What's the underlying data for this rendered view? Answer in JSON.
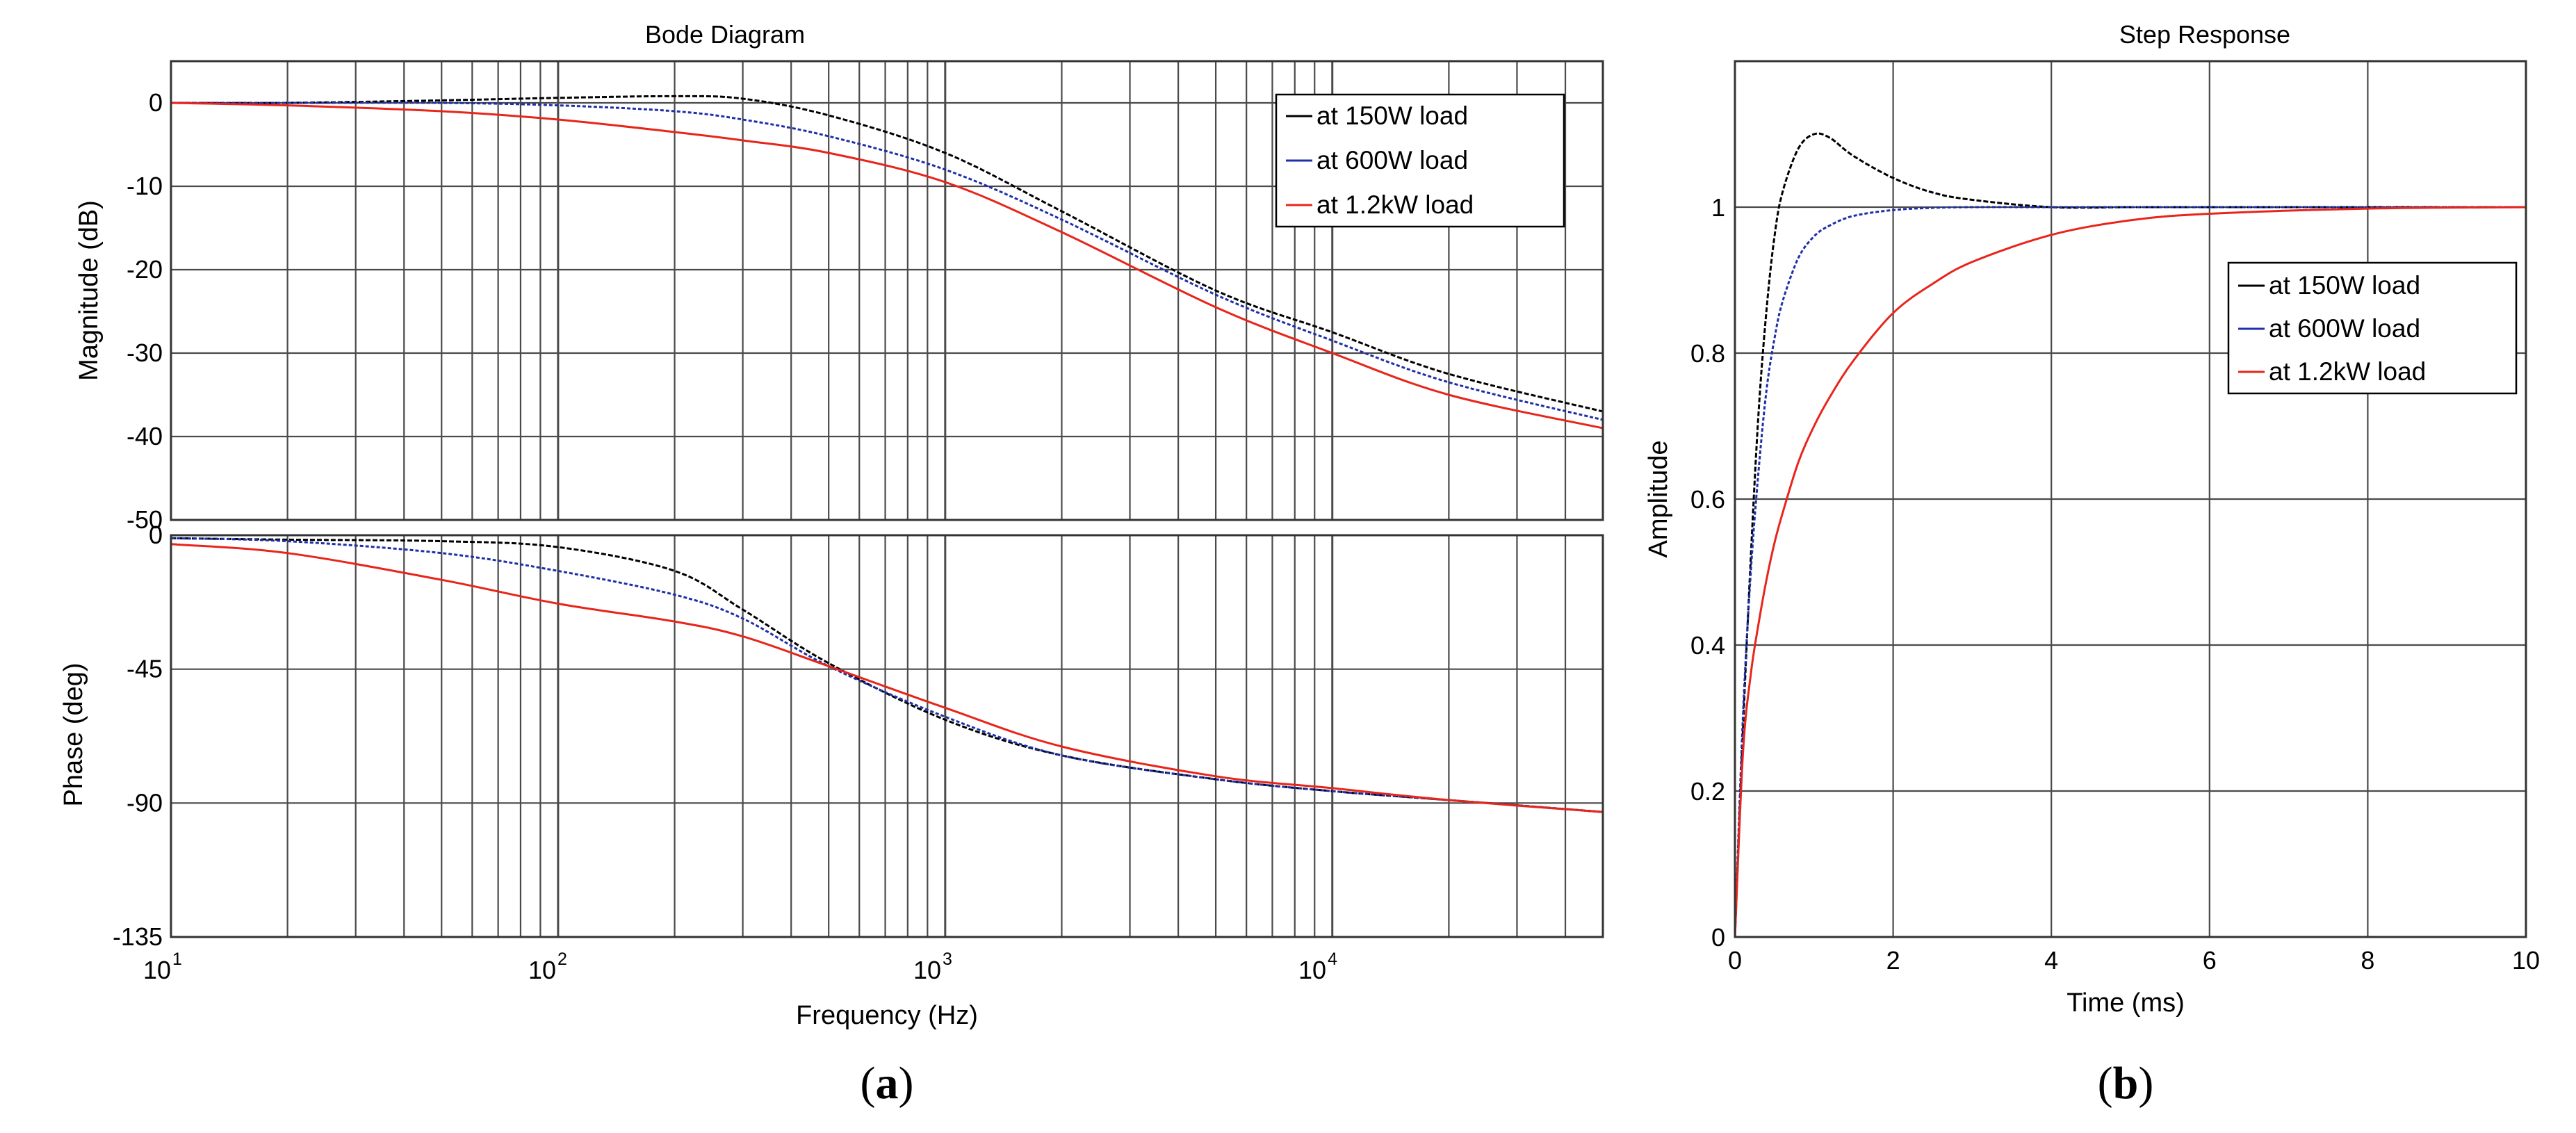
{
  "panels": [
    {
      "caption_open": "(",
      "caption_letter": "a",
      "caption_close": ")"
    },
    {
      "caption_open": "(",
      "caption_letter": "b",
      "caption_close": ")"
    }
  ],
  "chart_data": [
    {
      "type": "line",
      "title": "Bode Diagram",
      "subplot": "magnitude",
      "xscale": "log",
      "xlabel": "Frequency  (Hz)",
      "ylabel": "Magnitude (dB)",
      "xlim": [
        10,
        50000
      ],
      "ylim": [
        -50,
        5
      ],
      "grid": true,
      "legend_position": "top-right",
      "x_ticks": [
        {
          "base": "10",
          "exp": "1"
        },
        {
          "base": "10",
          "exp": "2"
        },
        {
          "base": "10",
          "exp": "3"
        },
        {
          "base": "10",
          "exp": "4"
        }
      ],
      "y_ticks": [
        "0",
        "-10",
        "-20",
        "-30",
        "-40",
        "-50"
      ],
      "y_tick_values": [
        0,
        -10,
        -20,
        -30,
        -40,
        -50
      ],
      "x": [
        10,
        20,
        50,
        100,
        200,
        300,
        500,
        1000,
        2000,
        5000,
        10000,
        20000,
        50000
      ],
      "series": [
        {
          "name": "at 150W load",
          "color": "#000000",
          "values": [
            0,
            0,
            0.3,
            0.6,
            0.8,
            0.5,
            -1.5,
            -6,
            -13,
            -22.5,
            -27.5,
            -32.5,
            -37
          ]
        },
        {
          "name": "at 600W load",
          "color": "#1f2fa8",
          "values": [
            0,
            0,
            0,
            -0.3,
            -1,
            -2,
            -4,
            -8,
            -14,
            -23,
            -28.5,
            -33.5,
            -38
          ]
        },
        {
          "name": "at 1.2kW load",
          "color": "#e8251b",
          "values": [
            0,
            -0.3,
            -1,
            -2,
            -3.5,
            -4.5,
            -6,
            -9.5,
            -15.5,
            -24.5,
            -30,
            -35,
            -39
          ]
        }
      ]
    },
    {
      "type": "line",
      "subplot": "phase",
      "xscale": "log",
      "xlabel": "Frequency  (Hz)",
      "ylabel": "Phase (deg)",
      "xlim": [
        10,
        50000
      ],
      "ylim": [
        -135,
        0
      ],
      "grid": true,
      "y_ticks": [
        "0",
        "-45",
        "-90",
        "-135"
      ],
      "y_tick_values": [
        0,
        -45,
        -90,
        -135
      ],
      "x": [
        10,
        20,
        50,
        100,
        200,
        300,
        500,
        1000,
        2000,
        5000,
        10000,
        20000,
        50000
      ],
      "series": [
        {
          "name": "at 150W load",
          "color": "#000000",
          "values": [
            -1,
            -1.5,
            -2,
            -4,
            -12,
            -25,
            -43,
            -62,
            -74,
            -82,
            -86,
            -89,
            -93
          ]
        },
        {
          "name": "at 600W load",
          "color": "#1f2fa8",
          "values": [
            -1,
            -2,
            -6,
            -12,
            -20,
            -28,
            -44,
            -61,
            -74,
            -82,
            -86,
            -89,
            -93
          ]
        },
        {
          "name": "at 1.2kW load",
          "color": "#e8251b",
          "values": [
            -3,
            -6,
            -15,
            -23,
            -29,
            -34,
            -44,
            -58,
            -71,
            -81,
            -85,
            -89,
            -93
          ]
        }
      ]
    },
    {
      "type": "line",
      "title": "Step Response",
      "xlabel": "Time (ms)",
      "ylabel": "Amplitude",
      "xlim": [
        0,
        10
      ],
      "ylim": [
        0,
        1.2
      ],
      "grid": true,
      "legend_position": "right",
      "x_ticks": [
        "0",
        "2",
        "4",
        "6",
        "8",
        "10"
      ],
      "x_tick_values": [
        0,
        2,
        4,
        6,
        8,
        10
      ],
      "y_ticks": [
        "0",
        "0.2",
        "0.4",
        "0.6",
        "0.8",
        "1"
      ],
      "y_tick_values": [
        0,
        0.2,
        0.4,
        0.6,
        0.8,
        1
      ],
      "x": [
        0,
        0.1,
        0.2,
        0.3,
        0.4,
        0.5,
        0.6,
        0.8,
        1.0,
        1.2,
        1.5,
        2.0,
        2.5,
        3.0,
        4.0,
        5.0,
        6.0,
        8.0,
        10.0
      ],
      "series": [
        {
          "name": "at 150W load",
          "color": "#000000",
          "values": [
            0,
            0.28,
            0.52,
            0.72,
            0.86,
            0.96,
            1.02,
            1.08,
            1.1,
            1.095,
            1.07,
            1.04,
            1.02,
            1.01,
            1.0,
            1.0,
            1.0,
            1.0,
            1.0
          ]
        },
        {
          "name": "at 600W load",
          "color": "#1f2fa8",
          "values": [
            0,
            0.3,
            0.5,
            0.64,
            0.75,
            0.82,
            0.87,
            0.93,
            0.96,
            0.975,
            0.988,
            0.996,
            0.999,
            1.0,
            1.0,
            1.0,
            1.0,
            1.0,
            1.0
          ]
        },
        {
          "name": "at 1.2kW load",
          "color": "#e8251b",
          "values": [
            0,
            0.25,
            0.36,
            0.43,
            0.49,
            0.54,
            0.58,
            0.65,
            0.7,
            0.74,
            0.79,
            0.855,
            0.895,
            0.925,
            0.962,
            0.982,
            0.991,
            0.998,
            1.0
          ]
        }
      ]
    }
  ]
}
